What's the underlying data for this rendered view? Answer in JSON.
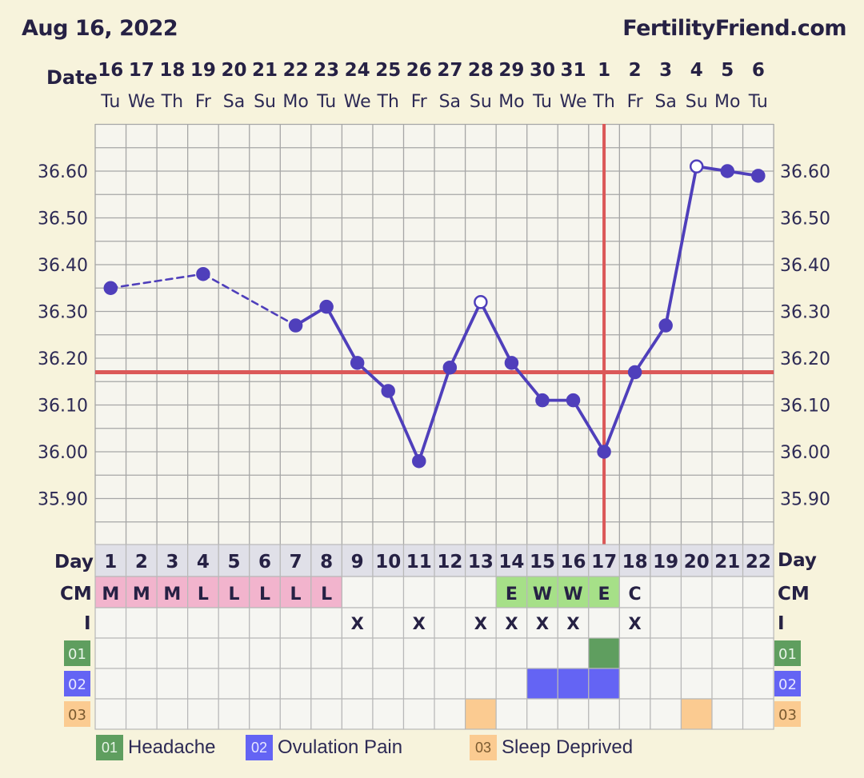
{
  "header": {
    "date": "Aug 16, 2022",
    "site": "FertilityFriend.com"
  },
  "chart_data": {
    "type": "line",
    "row_labels": {
      "date": "Date",
      "day": "Day",
      "cm": "CM",
      "intercourse": "I"
    },
    "dates": [
      "16",
      "17",
      "18",
      "19",
      "20",
      "21",
      "22",
      "23",
      "24",
      "25",
      "26",
      "27",
      "28",
      "29",
      "30",
      "31",
      "1",
      "2",
      "3",
      "4",
      "5",
      "6"
    ],
    "weekdays": [
      "Tu",
      "We",
      "Th",
      "Fr",
      "Sa",
      "Su",
      "Mo",
      "Tu",
      "We",
      "Th",
      "Fr",
      "Sa",
      "Su",
      "Mo",
      "Tu",
      "We",
      "Th",
      "Fr",
      "Sa",
      "Su",
      "Mo",
      "Tu"
    ],
    "cycle_days": [
      "1",
      "2",
      "3",
      "4",
      "5",
      "6",
      "7",
      "8",
      "9",
      "10",
      "11",
      "12",
      "13",
      "14",
      "15",
      "16",
      "17",
      "18",
      "19",
      "20",
      "21",
      "22"
    ],
    "ylim": [
      35.8,
      36.73
    ],
    "y_ticks": [
      "35.90",
      "36.00",
      "36.10",
      "36.20",
      "36.30",
      "36.40",
      "36.50",
      "36.60"
    ],
    "temperatures": [
      {
        "day": 1,
        "temp": 36.35,
        "open": false
      },
      {
        "day": 4,
        "temp": 36.38,
        "open": false
      },
      {
        "day": 7,
        "temp": 36.27,
        "open": false
      },
      {
        "day": 8,
        "temp": 36.31,
        "open": false
      },
      {
        "day": 9,
        "temp": 36.19,
        "open": false
      },
      {
        "day": 10,
        "temp": 36.13,
        "open": false
      },
      {
        "day": 11,
        "temp": 35.98,
        "open": false
      },
      {
        "day": 12,
        "temp": 36.18,
        "open": false
      },
      {
        "day": 13,
        "temp": 36.32,
        "open": true
      },
      {
        "day": 14,
        "temp": 36.19,
        "open": false
      },
      {
        "day": 15,
        "temp": 36.11,
        "open": false
      },
      {
        "day": 16,
        "temp": 36.11,
        "open": false
      },
      {
        "day": 17,
        "temp": 36.0,
        "open": false
      },
      {
        "day": 18,
        "temp": 36.17,
        "open": false
      },
      {
        "day": 19,
        "temp": 36.27,
        "open": false
      },
      {
        "day": 20,
        "temp": 36.61,
        "open": true
      },
      {
        "day": 21,
        "temp": 36.6,
        "open": false
      },
      {
        "day": 22,
        "temp": 36.59,
        "open": false
      }
    ],
    "dashed_segments": [
      [
        1,
        4
      ],
      [
        4,
        7
      ]
    ],
    "coverline": 36.17,
    "ovulation_day": 17,
    "cm": [
      "M",
      "M",
      "M",
      "L",
      "L",
      "L",
      "L",
      "L",
      "",
      "",
      "",
      "",
      "",
      "E",
      "W",
      "W",
      "E",
      "C",
      "",
      "",
      "",
      ""
    ],
    "intercourse": [
      "",
      "",
      "",
      "",
      "",
      "",
      "",
      "",
      "X",
      "",
      "X",
      "",
      "X",
      "X",
      "X",
      "X",
      "",
      "X",
      "",
      "",
      "",
      ""
    ],
    "symptoms": [
      {
        "code": "01",
        "label": "Headache",
        "color": "#5f9e5f",
        "days": [
          17
        ]
      },
      {
        "code": "02",
        "label": "Ovulation Pain",
        "color": "#6464f4",
        "days": [
          15,
          16,
          17
        ]
      },
      {
        "code": "03",
        "label": "Sleep Deprived",
        "color": "#fbcb91",
        "days": [
          13,
          20
        ]
      }
    ],
    "colors": {
      "line": "#4f3fbb",
      "coverline": "#db5858",
      "grid": "#a6a6a6",
      "menses_cell": "#f2b4cd",
      "egg_white_cell": "#a6e088",
      "day_header_cell": "#e0e0e8",
      "cell_bg": "#f6f6f2"
    }
  }
}
